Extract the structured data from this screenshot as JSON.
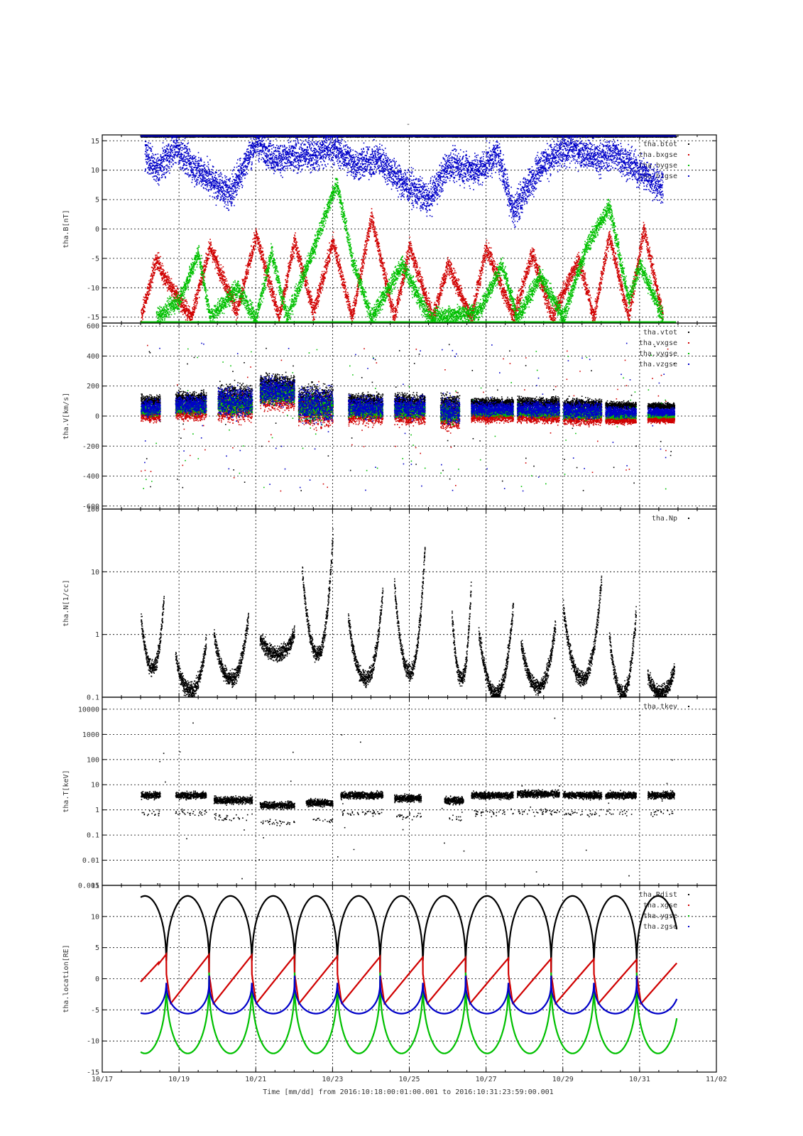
{
  "title": "-",
  "footer": {
    "xlabel": "Time [mm/dd]",
    "range_text": "from 2016:10:18:00:01:00.001  to  2016:10:31:23:59:00.001"
  },
  "colors": {
    "black": "#000000",
    "red": "#d00000",
    "green": "#00c000",
    "blue": "#0000c8"
  },
  "chart_data": [
    {
      "type": "scatter",
      "ylabel": "tha.B[nT]",
      "ylim": [
        -16,
        16
      ],
      "yticks": [
        -15,
        -10,
        -5,
        0,
        5,
        10,
        15
      ],
      "grid": true,
      "legend_placement": "top-right",
      "x_unit": "day of October 2016",
      "series": [
        {
          "name": "tha.btot",
          "color": "black"
        },
        {
          "name": "tha.bxgse",
          "color": "red"
        },
        {
          "name": "tha.bygse",
          "color": "green"
        },
        {
          "name": "tha.bzgse",
          "color": "blue"
        }
      ],
      "features": [
        {
          "series": "tha.btot",
          "note": "mostly above +16 nT (off scale), visible along top border"
        },
        {
          "series": "tha.bxgse",
          "segments": [
            [
              18.0,
              -15
            ],
            [
              18.4,
              -5
            ],
            [
              18.6,
              -8
            ],
            [
              19.3,
              -15
            ],
            [
              19.8,
              -3
            ],
            [
              20.5,
              -14
            ],
            [
              21.0,
              -1
            ],
            [
              21.6,
              -15
            ],
            [
              22.0,
              -2
            ],
            [
              22.5,
              -14
            ],
            [
              23.0,
              -2
            ],
            [
              23.5,
              -15
            ],
            [
              24.0,
              2
            ],
            [
              24.6,
              -15
            ],
            [
              25.0,
              -3
            ],
            [
              25.6,
              -15
            ],
            [
              26.0,
              -6
            ],
            [
              26.6,
              -15
            ],
            [
              27.0,
              -3
            ],
            [
              27.7,
              -15
            ],
            [
              28.2,
              -4
            ],
            [
              28.7,
              -15
            ],
            [
              29.4,
              -5
            ],
            [
              29.8,
              -15
            ],
            [
              30.2,
              -1
            ],
            [
              30.7,
              -15
            ],
            [
              31.1,
              0
            ],
            [
              31.6,
              -15
            ]
          ]
        },
        {
          "series": "tha.bygse",
          "segments": [
            [
              18.4,
              -15
            ],
            [
              19.0,
              -12
            ],
            [
              19.5,
              -4
            ],
            [
              19.8,
              -15
            ],
            [
              20.5,
              -10
            ],
            [
              21.0,
              -15
            ],
            [
              21.4,
              -4
            ],
            [
              21.8,
              -15
            ],
            [
              22.4,
              -5
            ],
            [
              23.1,
              8
            ],
            [
              23.5,
              -5
            ],
            [
              24.0,
              -15
            ],
            [
              24.8,
              -6
            ],
            [
              25.5,
              -15
            ],
            [
              26.8,
              -14
            ],
            [
              27.4,
              -6
            ],
            [
              27.8,
              -15
            ],
            [
              28.4,
              -8
            ],
            [
              29.0,
              -15
            ],
            [
              29.6,
              -3
            ],
            [
              30.2,
              4
            ],
            [
              30.7,
              -12
            ],
            [
              31.0,
              -6
            ],
            [
              31.6,
              -15
            ]
          ]
        },
        {
          "series": "tha.bzgse",
          "segments": [
            [
              18.1,
              13
            ],
            [
              18.4,
              10
            ],
            [
              18.9,
              14
            ],
            [
              19.3,
              11
            ],
            [
              20.3,
              6
            ],
            [
              21.0,
              15
            ],
            [
              21.5,
              12
            ],
            [
              22.6,
              13
            ],
            [
              23.0,
              14
            ],
            [
              23.6,
              11
            ],
            [
              24.2,
              12
            ],
            [
              24.8,
              8
            ],
            [
              25.5,
              5
            ],
            [
              26.0,
              11
            ],
            [
              26.8,
              10
            ],
            [
              27.3,
              13
            ],
            [
              27.7,
              3
            ],
            [
              28.4,
              11
            ],
            [
              29.2,
              14
            ],
            [
              29.9,
              12
            ],
            [
              30.3,
              13
            ],
            [
              31.2,
              9
            ],
            [
              31.6,
              7
            ]
          ]
        }
      ]
    },
    {
      "type": "scatter",
      "ylabel": "tha.V[km/s]",
      "ylim": [
        -620,
        620
      ],
      "yticks": [
        -600,
        -400,
        -200,
        0,
        200,
        400,
        600
      ],
      "grid": true,
      "legend_placement": "top-right",
      "series": [
        {
          "name": "tha.vtot",
          "color": "black"
        },
        {
          "name": "tha.vxgse",
          "color": "red"
        },
        {
          "name": "tha.vygse",
          "color": "green"
        },
        {
          "name": "tha.vzgse",
          "color": "blue"
        }
      ],
      "bursts": [
        {
          "x": [
            18.0,
            18.5
          ],
          "center": 40,
          "spread": 120
        },
        {
          "x": [
            18.9,
            19.7
          ],
          "center": 60,
          "spread": 140
        },
        {
          "x": [
            20.0,
            20.9
          ],
          "center": 80,
          "spread": 220
        },
        {
          "x": [
            21.1,
            22.0
          ],
          "center": 150,
          "spread": 200
        },
        {
          "x": [
            22.1,
            23.0
          ],
          "center": 60,
          "spread": 260
        },
        {
          "x": [
            23.4,
            24.3
          ],
          "center": 40,
          "spread": 160
        },
        {
          "x": [
            24.6,
            25.4
          ],
          "center": 40,
          "spread": 160
        },
        {
          "x": [
            25.8,
            26.3
          ],
          "center": 20,
          "spread": 200
        },
        {
          "x": [
            26.6,
            27.7
          ],
          "center": 30,
          "spread": 100
        },
        {
          "x": [
            27.8,
            28.9
          ],
          "center": 30,
          "spread": 110
        },
        {
          "x": [
            29.0,
            30.0
          ],
          "center": 20,
          "spread": 120
        },
        {
          "x": [
            30.1,
            30.9
          ],
          "center": 10,
          "spread": 80
        },
        {
          "x": [
            31.2,
            31.9
          ],
          "center": 10,
          "spread": 60
        }
      ]
    },
    {
      "type": "scatter",
      "ylabel": "tha.N[1/cc]",
      "yscale": "log",
      "ylim": [
        0.1,
        100
      ],
      "yticks": [
        0.1,
        1,
        10,
        100
      ],
      "ytick_labels": [
        "0.1",
        "1",
        "10",
        "100"
      ],
      "grid": true,
      "legend_placement": "top-right",
      "series": [
        {
          "name": "tha.Np",
          "color": "black"
        }
      ],
      "arcs": [
        [
          18.0,
          18.6,
          0.3,
          4
        ],
        [
          18.9,
          19.7,
          0.13,
          0.8
        ],
        [
          19.9,
          20.8,
          0.2,
          2
        ],
        [
          21.1,
          22.0,
          0.5,
          1.1
        ],
        [
          22.2,
          23.0,
          0.5,
          40
        ],
        [
          23.4,
          24.3,
          0.2,
          5
        ],
        [
          24.6,
          25.4,
          0.25,
          28
        ],
        [
          26.1,
          26.6,
          0.2,
          6
        ],
        [
          26.8,
          27.7,
          0.12,
          3
        ],
        [
          27.9,
          28.8,
          0.15,
          1.5
        ],
        [
          29.0,
          30.0,
          0.2,
          8
        ],
        [
          30.2,
          30.9,
          0.12,
          2.5
        ],
        [
          31.2,
          31.9,
          0.12,
          0.3
        ]
      ]
    },
    {
      "type": "scatter",
      "ylabel": "tha.T[keV]",
      "yscale": "log",
      "ylim": [
        0.001,
        30000
      ],
      "yticks": [
        0.001,
        0.01,
        0.1,
        1,
        10,
        100,
        1000,
        10000
      ],
      "ytick_labels": [
        "0.001",
        "0.01",
        "0.1",
        "1",
        "10",
        "100",
        "1000",
        "10000"
      ],
      "grid": true,
      "legend_placement": "top-right",
      "series": [
        {
          "name": "tha.tkev",
          "color": "black"
        }
      ],
      "bands": [
        [
          18.0,
          18.5,
          4
        ],
        [
          18.9,
          19.7,
          4
        ],
        [
          19.9,
          20.9,
          2.5
        ],
        [
          21.1,
          22.0,
          1.6
        ],
        [
          22.3,
          23.0,
          2
        ],
        [
          23.2,
          24.3,
          4
        ],
        [
          24.6,
          25.3,
          3
        ],
        [
          25.9,
          26.4,
          2.5
        ],
        [
          26.6,
          27.7,
          4
        ],
        [
          27.8,
          28.9,
          4.5
        ],
        [
          29.0,
          30.0,
          4
        ],
        [
          30.1,
          30.9,
          4
        ],
        [
          31.2,
          31.9,
          4
        ]
      ]
    },
    {
      "type": "line",
      "ylabel": "tha.location[RE]",
      "xlabel": "Time [mm/dd]",
      "xlim": [
        17,
        33
      ],
      "xticks": [
        17,
        19,
        21,
        23,
        25,
        27,
        29,
        31,
        33
      ],
      "xtick_labels": [
        "10/17",
        "10/19",
        "10/21",
        "10/23",
        "10/25",
        "10/27",
        "10/29",
        "10/31",
        "11/02"
      ],
      "ylim": [
        -15,
        15
      ],
      "yticks": [
        -15,
        -10,
        -5,
        0,
        5,
        10,
        15
      ],
      "grid": true,
      "legend_placement": "top-right",
      "orbit": {
        "start": 18.0,
        "end": 31.97,
        "period_days": 1.114,
        "first_perigee": 18.67
      },
      "series": [
        {
          "name": "tha.Rdist",
          "color": "black",
          "min": 1.0,
          "max": 13.3
        },
        {
          "name": "tha.xgse",
          "color": "red",
          "from": -0.5,
          "to_first": 4.0,
          "to_last": 3.0
        },
        {
          "name": "tha.ygse",
          "color": "green",
          "min": -12.0,
          "max": 1.0
        },
        {
          "name": "tha.zgse",
          "color": "blue",
          "min": -5.6,
          "max": 0.5
        }
      ]
    }
  ]
}
